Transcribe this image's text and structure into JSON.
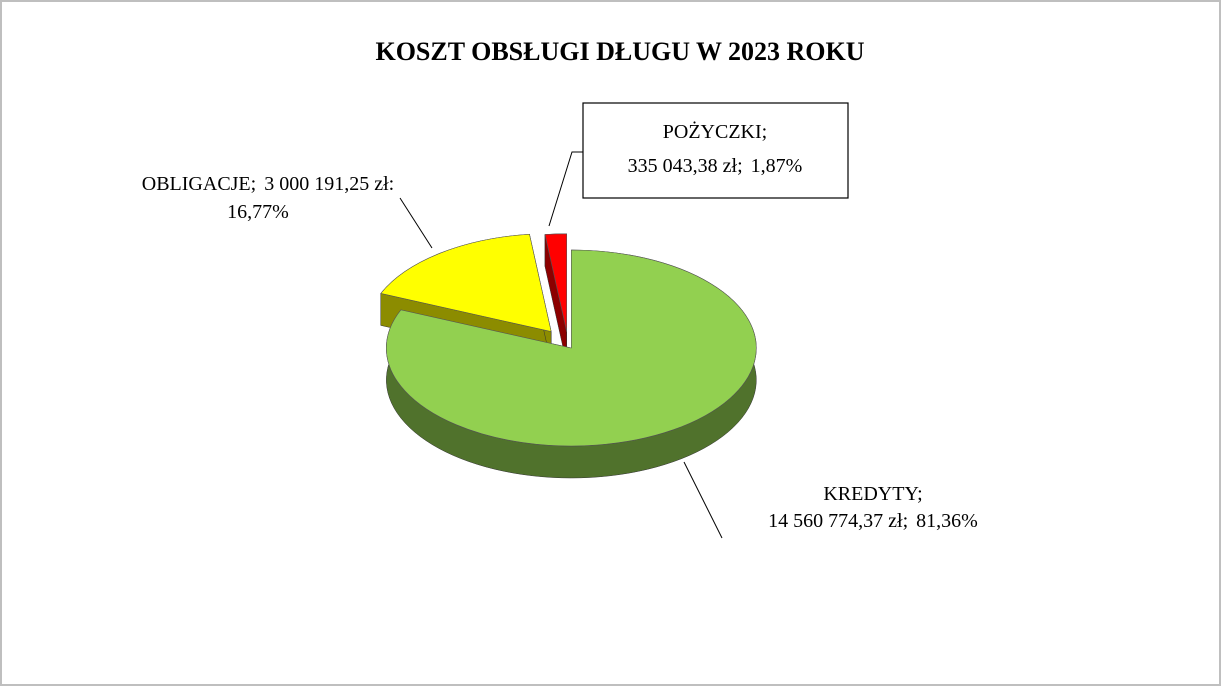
{
  "chart_data": {
    "type": "pie",
    "title": "KOSZT  OBSŁUGI DŁUGU W   2023 ROKU",
    "categories": [
      "KREDYTY;",
      "OBLIGACJE;",
      "POŻYCZKI;"
    ],
    "values": [
      14560774.37,
      3000191.25,
      335043.38
    ],
    "value_labels": [
      "14 560 774,37 zł;",
      "3 000 191,25 zł:",
      "335 043,38 zł;"
    ],
    "percentages": [
      81.36,
      16.77,
      1.87
    ],
    "percentage_labels": [
      "81,36%",
      "16,77%",
      "1,87%"
    ],
    "colors": [
      "#92d050",
      "#ffff00",
      "#ff0000"
    ]
  }
}
